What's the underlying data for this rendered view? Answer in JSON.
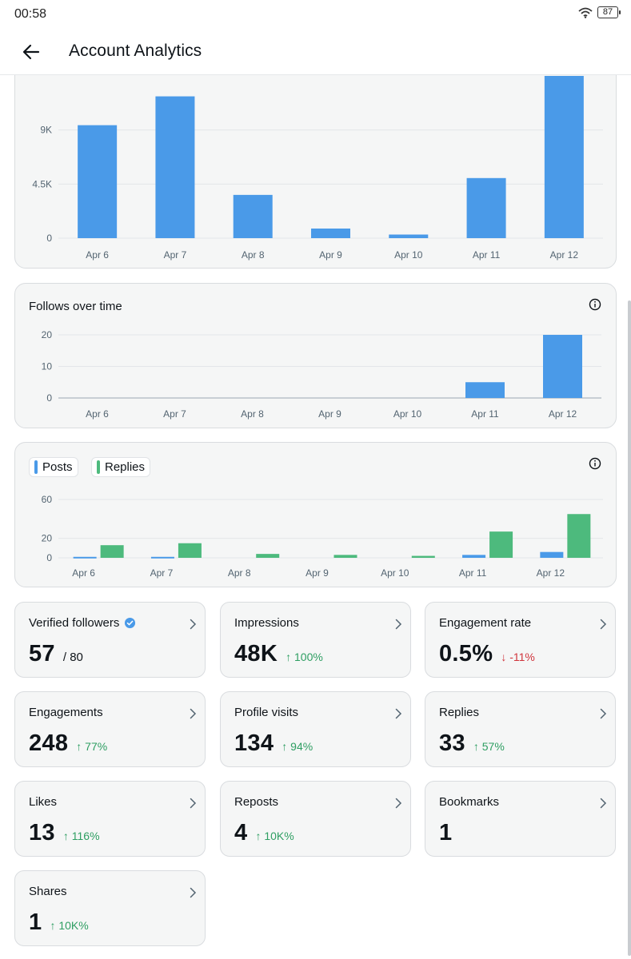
{
  "status_bar": {
    "time": "00:58",
    "battery": "87"
  },
  "header": {
    "title": "Account Analytics"
  },
  "colors": {
    "posts_blue": "#4a9ae8",
    "replies_green": "#4dba7d",
    "up": "#2e9e62",
    "down": "#d0343c"
  },
  "chart_data": [
    {
      "type": "bar",
      "title": "",
      "categories": [
        "Apr 6",
        "Apr 7",
        "Apr 8",
        "Apr 9",
        "Apr 10",
        "Apr 11",
        "Apr 12"
      ],
      "values": [
        9400,
        11800,
        3600,
        800,
        300,
        5000,
        13500
      ],
      "y_ticks": [
        "0",
        "4.5K",
        "9K"
      ],
      "y_tick_values": [
        0,
        4500,
        9000
      ],
      "ylim": [
        0,
        13500
      ]
    },
    {
      "type": "bar",
      "title": "Follows over time",
      "categories": [
        "Apr 6",
        "Apr 7",
        "Apr 8",
        "Apr 9",
        "Apr 10",
        "Apr 11",
        "Apr 12"
      ],
      "values": [
        0,
        0,
        0,
        0,
        0,
        5,
        20
      ],
      "y_ticks": [
        "0",
        "10",
        "20"
      ],
      "y_tick_values": [
        0,
        10,
        20
      ],
      "ylim": [
        0,
        20
      ]
    },
    {
      "type": "bar",
      "title": "",
      "categories": [
        "Apr 6",
        "Apr 7",
        "Apr 8",
        "Apr 9",
        "Apr 10",
        "Apr 11",
        "Apr 12"
      ],
      "series": [
        {
          "name": "Posts",
          "values": [
            1,
            1,
            0,
            0,
            0,
            3,
            6
          ]
        },
        {
          "name": "Replies",
          "values": [
            13,
            15,
            4,
            3,
            2,
            27,
            45
          ]
        }
      ],
      "y_ticks": [
        "0",
        "20",
        "60"
      ],
      "y_tick_values": [
        0,
        20,
        60
      ],
      "ylim": [
        0,
        60
      ]
    }
  ],
  "stats": [
    {
      "label": "Verified followers",
      "value": "57",
      "sub": "/ 80",
      "delta": "",
      "dir": "",
      "verified": true
    },
    {
      "label": "Impressions",
      "value": "48K",
      "sub": "",
      "delta": "↑ 100%",
      "dir": "up"
    },
    {
      "label": "Engagement rate",
      "value": "0.5%",
      "sub": "",
      "delta": "↓ -11%",
      "dir": "down"
    },
    {
      "label": "Engagements",
      "value": "248",
      "sub": "",
      "delta": "↑ 77%",
      "dir": "up"
    },
    {
      "label": "Profile visits",
      "value": "134",
      "sub": "",
      "delta": "↑ 94%",
      "dir": "up"
    },
    {
      "label": "Replies",
      "value": "33",
      "sub": "",
      "delta": "↑ 57%",
      "dir": "up"
    },
    {
      "label": "Likes",
      "value": "13",
      "sub": "",
      "delta": "↑ 116%",
      "dir": "up"
    },
    {
      "label": "Reposts",
      "value": "4",
      "sub": "",
      "delta": "↑ 10K%",
      "dir": "up"
    },
    {
      "label": "Bookmarks",
      "value": "1",
      "sub": "",
      "delta": "",
      "dir": ""
    },
    {
      "label": "Shares",
      "value": "1",
      "sub": "",
      "delta": "↑ 10K%",
      "dir": "up"
    }
  ]
}
